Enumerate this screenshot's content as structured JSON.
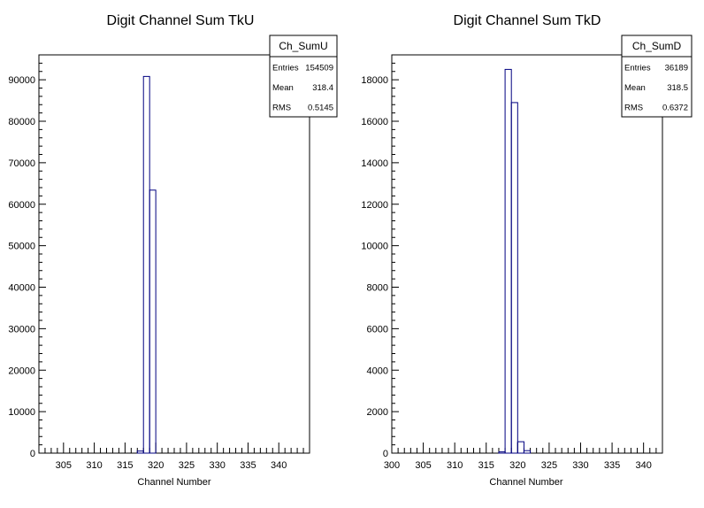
{
  "chart_data": [
    {
      "type": "bar",
      "title": "Digit Channel Sum TkU",
      "xlabel": "Channel Number",
      "ylabel": "",
      "xlim": [
        301,
        345
      ],
      "ylim": [
        0,
        96000
      ],
      "x_ticks": [
        305,
        310,
        315,
        320,
        325,
        330,
        335,
        340
      ],
      "y_ticks": [
        0,
        10000,
        20000,
        30000,
        40000,
        50000,
        60000,
        70000,
        80000,
        90000
      ],
      "bin_width": 1,
      "bins": [
        {
          "x": 317,
          "value": 500
        },
        {
          "x": 318,
          "value": 90800
        },
        {
          "x": 319,
          "value": 63400
        }
      ],
      "stats": {
        "name": "Ch_SumU",
        "rows": [
          {
            "label": "Entries",
            "value": "154509"
          },
          {
            "label": "Mean",
            "value": "318.4"
          },
          {
            "label": "RMS",
            "value": "0.5145"
          }
        ]
      },
      "line_color": "#000080"
    },
    {
      "type": "bar",
      "title": "Digit Channel Sum TkD",
      "xlabel": "Channel Number",
      "ylabel": "",
      "xlim": [
        300,
        343
      ],
      "ylim": [
        0,
        19200
      ],
      "x_ticks": [
        300,
        305,
        310,
        315,
        320,
        325,
        330,
        335,
        340
      ],
      "y_ticks": [
        0,
        2000,
        4000,
        6000,
        8000,
        10000,
        12000,
        14000,
        16000,
        18000
      ],
      "bin_width": 1,
      "bins": [
        {
          "x": 317,
          "value": 60
        },
        {
          "x": 318,
          "value": 18500
        },
        {
          "x": 319,
          "value": 16900
        },
        {
          "x": 320,
          "value": 550
        },
        {
          "x": 321,
          "value": 120
        }
      ],
      "stats": {
        "name": "Ch_SumD",
        "rows": [
          {
            "label": "Entries",
            "value": "36189"
          },
          {
            "label": "Mean",
            "value": "318.5"
          },
          {
            "label": "RMS",
            "value": "0.6372"
          }
        ]
      },
      "line_color": "#000080"
    }
  ]
}
